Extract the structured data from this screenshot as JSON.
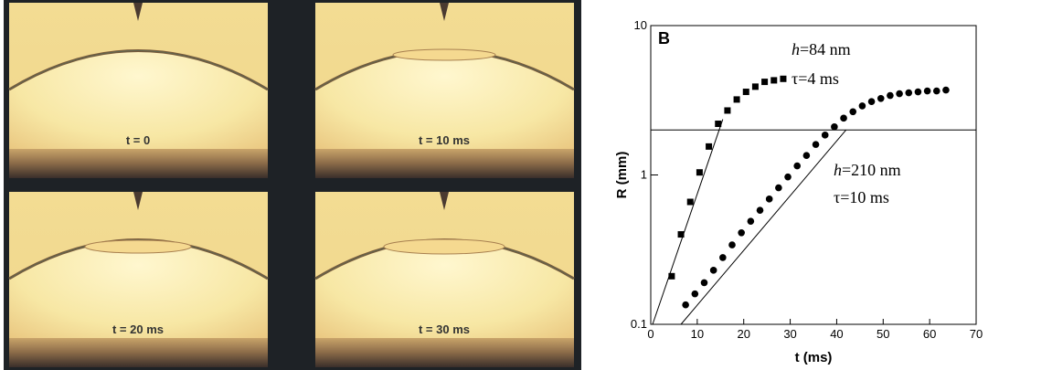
{
  "panels": [
    {
      "label": "t = 0"
    },
    {
      "label": "t = 10 ms"
    },
    {
      "label": "t = 20 ms"
    },
    {
      "label": "t = 30 ms"
    }
  ],
  "chart_data": {
    "type": "scatter",
    "panel_label": "B",
    "xlabel": "t (ms)",
    "ylabel": "R (mm)",
    "xlim": [
      0,
      70
    ],
    "xticks": [
      0,
      10,
      20,
      30,
      40,
      50,
      60,
      70
    ],
    "ylim": [
      0.1,
      10
    ],
    "yticks": [
      0.1,
      1,
      10
    ],
    "log_y": true,
    "hline": 2,
    "annotations": [
      "h=84 nm",
      "τ=4 ms",
      "h=210 nm",
      "τ=10 ms"
    ],
    "series": [
      {
        "marker": "square",
        "color": "#000000",
        "x": [
          4.5,
          6.5,
          8.5,
          10.5,
          12.5,
          14.5,
          16.5,
          18.5,
          20.5,
          22.5,
          24.5,
          26.5,
          28.5
        ],
        "values": [
          0.21,
          0.4,
          0.66,
          1.04,
          1.55,
          2.2,
          2.7,
          3.2,
          3.6,
          3.9,
          4.2,
          4.3,
          4.4
        ]
      },
      {
        "marker": "circle",
        "color": "#000000",
        "x": [
          7.5,
          9.5,
          11.5,
          13.5,
          15.5,
          17.5,
          19.5,
          21.5,
          23.5,
          25.5,
          27.5,
          29.5,
          31.5,
          33.5,
          35.5,
          37.5,
          39.5,
          41.5,
          43.5,
          45.5,
          47.5,
          49.5,
          51.5,
          53.5,
          55.5,
          57.5,
          59.5,
          61.5,
          63.5
        ],
        "values": [
          0.135,
          0.16,
          0.19,
          0.23,
          0.28,
          0.34,
          0.41,
          0.49,
          0.58,
          0.69,
          0.82,
          0.97,
          1.15,
          1.35,
          1.6,
          1.85,
          2.1,
          2.4,
          2.65,
          2.9,
          3.1,
          3.25,
          3.4,
          3.5,
          3.55,
          3.6,
          3.65,
          3.65,
          3.7
        ]
      },
      {
        "marker": "line",
        "color": "#000000",
        "x": [
          0.4,
          15.5
        ],
        "values": [
          0.1,
          2.36
        ]
      },
      {
        "marker": "line",
        "color": "#000000",
        "x": [
          6.5,
          42
        ],
        "values": [
          0.1,
          2.0
        ]
      }
    ]
  }
}
